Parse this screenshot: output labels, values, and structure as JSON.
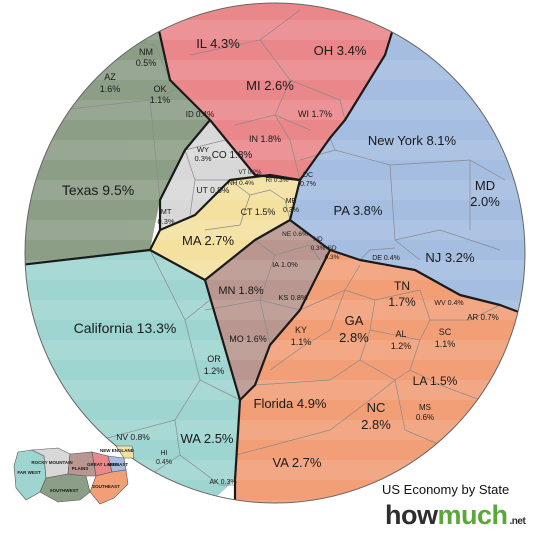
{
  "title": "US Economy by State",
  "brand": {
    "how": "how",
    "much": "much",
    "net": ".net"
  },
  "colors": {
    "southwest": "#8d9e87",
    "farwest": "#9fd5d1",
    "greatlakes": "#e9878b",
    "mideast": "#a4bde0",
    "newengland": "#f4e1a0",
    "rockymountain": "#d8d8d8",
    "plains": "#b9968f",
    "southeast": "#f29f78"
  },
  "states": {
    "tx": {
      "name": "Texas",
      "value": "9.5%"
    },
    "az": {
      "name": "AZ",
      "value": "1.6%"
    },
    "nm": {
      "name": "NM",
      "value": "0.5%"
    },
    "ok": {
      "name": "OK",
      "value": "1.1%"
    },
    "il": {
      "name": "IL",
      "value": "4.3%"
    },
    "oh": {
      "name": "OH",
      "value": "3.4%"
    },
    "mi": {
      "name": "MI",
      "value": "2.6%"
    },
    "wi": {
      "name": "WI",
      "value": "1.7%"
    },
    "in": {
      "name": "IN",
      "value": "1.8%"
    },
    "ny": {
      "name": "New York",
      "value": "8.1%"
    },
    "md": {
      "name": "MD",
      "value": "2.0%"
    },
    "pa": {
      "name": "PA",
      "value": "3.8%"
    },
    "nj": {
      "name": "NJ",
      "value": "3.2%"
    },
    "dc": {
      "name": "DC",
      "value": "0.7%"
    },
    "de": {
      "name": "DE",
      "value": "0.4%"
    },
    "id": {
      "name": "ID",
      "value": "0.4%"
    },
    "co": {
      "name": "CO",
      "value": "1.8%"
    },
    "wy": {
      "name": "WY",
      "value": "0.3%"
    },
    "ut": {
      "name": "UT",
      "value": "0.8%"
    },
    "mt": {
      "name": "MT",
      "value": "0.3%"
    },
    "ma": {
      "name": "MA",
      "value": "2.7%"
    },
    "ct": {
      "name": "CT",
      "value": "1.5%"
    },
    "me": {
      "name": "ME",
      "value": "0.3%"
    },
    "nh": {
      "name": "NH",
      "value": "0.4%"
    },
    "vt": {
      "name": "VT",
      "value": "0.2%"
    },
    "ri": {
      "name": "RI",
      "value": "0.3%"
    },
    "mn": {
      "name": "MN",
      "value": "1.8%"
    },
    "ia": {
      "name": "IA",
      "value": "1.0%"
    },
    "ks": {
      "name": "KS",
      "value": "0.8%"
    },
    "mo": {
      "name": "MO",
      "value": "1.6%"
    },
    "ne": {
      "name": "NE",
      "value": "0.6%"
    },
    "nd": {
      "name": "ND",
      "value": "0.3%"
    },
    "sd": {
      "name": "SD",
      "value": "0.3%"
    },
    "ca": {
      "name": "California",
      "value": "13.3%"
    },
    "or": {
      "name": "OR",
      "value": "1.2%"
    },
    "wa": {
      "name": "WA",
      "value": "2.5%"
    },
    "nv": {
      "name": "NV",
      "value": "0.8%"
    },
    "hi": {
      "name": "HI",
      "value": "0.4%"
    },
    "ak": {
      "name": "AK",
      "value": "0.3%"
    },
    "fl": {
      "name": "Florida",
      "value": "4.9%"
    },
    "ga": {
      "name": "GA",
      "value": "2.8%"
    },
    "tn": {
      "name": "TN",
      "value": "1.7%"
    },
    "ky": {
      "name": "KY",
      "value": "1.1%"
    },
    "al": {
      "name": "AL",
      "value": "1.2%"
    },
    "sc": {
      "name": "SC",
      "value": "1.1%"
    },
    "wv": {
      "name": "WV",
      "value": "0.4%"
    },
    "ar": {
      "name": "AR",
      "value": "0.7%"
    },
    "la": {
      "name": "LA",
      "value": "1.5%"
    },
    "nc": {
      "name": "NC",
      "value": "2.8%"
    },
    "ms": {
      "name": "MS",
      "value": "0.6%"
    },
    "va": {
      "name": "VA",
      "value": "2.7%"
    }
  },
  "map_legend": {
    "farwest": "FAR WEST",
    "rockymountain": "ROCKY MOUNTAIN",
    "plains": "PLAINS",
    "greatlakes": "GREAT LAKES",
    "newengland": "NEW ENGLAND",
    "mideast": "MIDEAST",
    "southwest": "SOUTHWEST",
    "southeast": "SOUTHEAST"
  }
}
